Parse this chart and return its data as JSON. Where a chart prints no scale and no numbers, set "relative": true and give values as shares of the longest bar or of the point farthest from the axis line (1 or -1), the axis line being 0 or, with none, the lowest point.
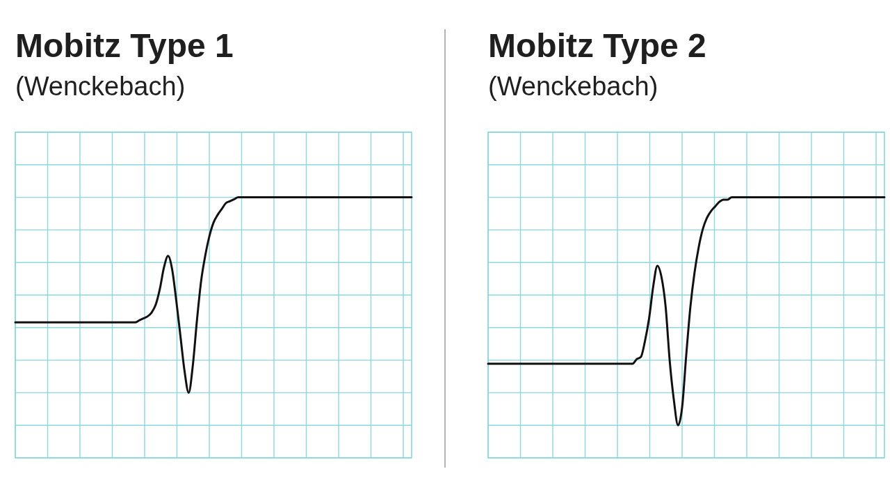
{
  "chart_data": [
    {
      "type": "line",
      "title": "Mobitz Type 1",
      "subtitle": "(Wenckebach)",
      "relative": true,
      "grid": true,
      "color": "#111111",
      "categories": [
        null,
        null,
        null,
        null,
        null,
        null,
        null,
        null,
        null,
        null,
        null,
        null,
        null,
        null,
        null,
        null,
        null,
        null,
        null,
        null,
        null,
        null,
        null,
        null,
        null,
        null,
        null,
        null,
        null,
        null,
        null,
        null,
        null,
        null,
        null,
        null,
        null,
        null,
        null,
        null,
        null,
        null,
        null,
        null,
        null,
        null,
        null,
        null,
        null,
        null,
        null,
        null,
        null,
        null,
        null,
        null,
        null,
        null,
        null,
        null,
        null,
        null,
        null,
        null,
        null,
        null,
        null,
        null,
        null,
        null,
        null,
        null,
        null,
        null,
        null,
        null,
        null,
        null,
        null,
        null,
        null,
        null,
        null,
        null,
        null,
        null,
        null,
        null,
        null,
        null,
        null,
        null,
        null,
        null,
        null,
        null,
        null
      ],
      "values": [
        0.36,
        0.36,
        0.36,
        0.36,
        0.36,
        0.36,
        0.36,
        0.36,
        0.36,
        0.36,
        0.36,
        0.36,
        0.36,
        0.36,
        0.36,
        0.36,
        0.36,
        0.36,
        0.36,
        0.36,
        0.36,
        0.36,
        0.36,
        0.36,
        0.36,
        0.36,
        0.36,
        0.36,
        0.36,
        0.36,
        0.37,
        0.38,
        0.39,
        0.41,
        0.45,
        0.53,
        0.64,
        0.7,
        0.63,
        0.47,
        0.29,
        0.11,
        0,
        0.14,
        0.37,
        0.57,
        0.7,
        0.8,
        0.87,
        0.91,
        0.94,
        0.97,
        0.98,
        0.99,
        1,
        1,
        1,
        1,
        1,
        1,
        1,
        1,
        1,
        1,
        1,
        1,
        1,
        1,
        1,
        1,
        1,
        1,
        1,
        1,
        1,
        1,
        1,
        1,
        1,
        1,
        1,
        1,
        1,
        1,
        1,
        1,
        1,
        1,
        1,
        1,
        1,
        1,
        1,
        1,
        1,
        1,
        1
      ]
    },
    {
      "type": "line",
      "title": "Mobitz Type 2",
      "subtitle": "(Wenckebach)",
      "relative": true,
      "grid": true,
      "color": "#111111",
      "categories": [
        null,
        null,
        null,
        null,
        null,
        null,
        null,
        null,
        null,
        null,
        null,
        null,
        null,
        null,
        null,
        null,
        null,
        null,
        null,
        null,
        null,
        null,
        null,
        null,
        null,
        null,
        null,
        null,
        null,
        null,
        null,
        null,
        null,
        null,
        null,
        null,
        null,
        null,
        null,
        null,
        null,
        null,
        null,
        null,
        null,
        null,
        null,
        null,
        null,
        null,
        null,
        null,
        null,
        null,
        null,
        null,
        null,
        null,
        null,
        null,
        null,
        null,
        null,
        null,
        null,
        null,
        null,
        null,
        null,
        null,
        null,
        null,
        null,
        null,
        null,
        null,
        null,
        null,
        null,
        null,
        null,
        null,
        null,
        null,
        null,
        null,
        null,
        null,
        null,
        null,
        null,
        null,
        null,
        null,
        null,
        null,
        null
      ],
      "values": [
        0.27,
        0.27,
        0.27,
        0.27,
        0.27,
        0.27,
        0.27,
        0.27,
        0.27,
        0.27,
        0.27,
        0.27,
        0.27,
        0.27,
        0.27,
        0.27,
        0.27,
        0.27,
        0.27,
        0.27,
        0.27,
        0.27,
        0.27,
        0.27,
        0.27,
        0.27,
        0.27,
        0.27,
        0.27,
        0.27,
        0.27,
        0.27,
        0.27,
        0.27,
        0.27,
        0.27,
        0.29,
        0.3,
        0.37,
        0.47,
        0.61,
        0.7,
        0.65,
        0.52,
        0.28,
        0.11,
        0,
        0.08,
        0.31,
        0.52,
        0.67,
        0.78,
        0.86,
        0.91,
        0.94,
        0.96,
        0.98,
        0.99,
        0.99,
        1,
        1,
        1,
        1,
        1,
        1,
        1,
        1,
        1,
        1,
        1,
        1,
        1,
        1,
        1,
        1,
        1,
        1,
        1,
        1,
        1,
        1,
        1,
        1,
        1,
        1,
        1,
        1,
        1,
        1,
        1,
        1,
        1,
        1,
        1,
        1,
        1,
        1
      ]
    }
  ]
}
